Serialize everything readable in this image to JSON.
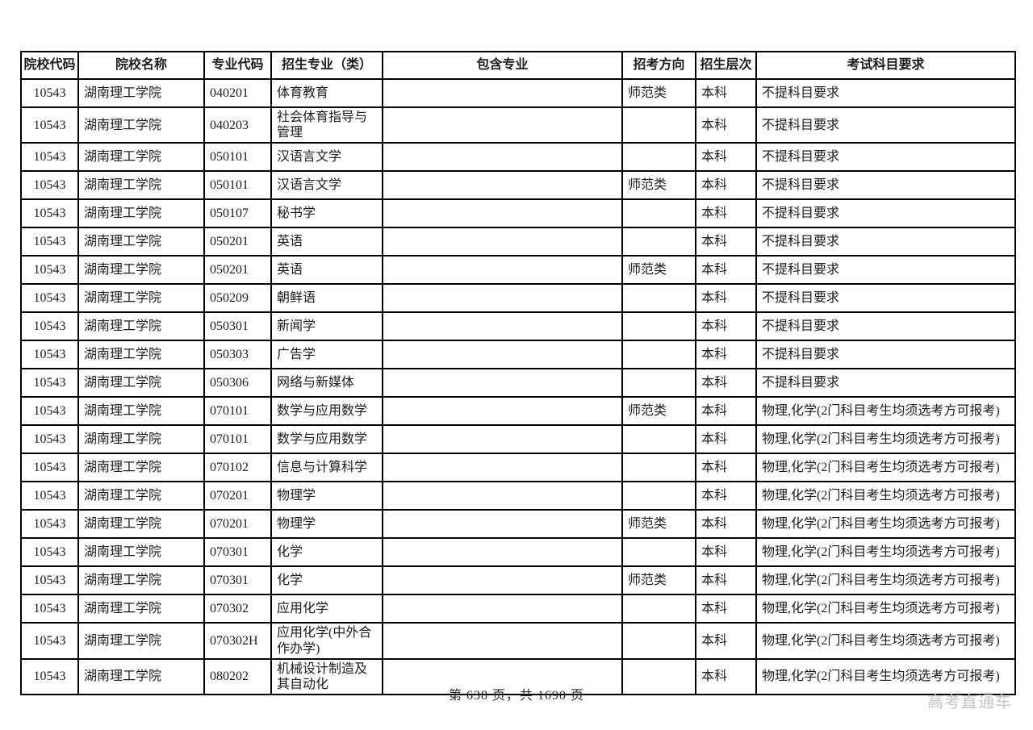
{
  "table": {
    "headers": [
      "院校代码",
      "院校名称",
      "专业代码",
      "招生专业（类）",
      "包含专业",
      "招考方向",
      "招生层次",
      "考试科目要求"
    ],
    "column_keys": [
      "college-code",
      "college-name",
      "major-code",
      "major-name",
      "included-majors",
      "direction",
      "level",
      "subject-requirements"
    ],
    "rows": [
      [
        "10543",
        "湖南理工学院",
        "040201",
        "体育教育",
        "",
        "师范类",
        "本科",
        "不提科目要求"
      ],
      [
        "10543",
        "湖南理工学院",
        "040203",
        "社会体育指导与管理",
        "",
        "",
        "本科",
        "不提科目要求"
      ],
      [
        "10543",
        "湖南理工学院",
        "050101",
        "汉语言文学",
        "",
        "",
        "本科",
        "不提科目要求"
      ],
      [
        "10543",
        "湖南理工学院",
        "050101",
        "汉语言文学",
        "",
        "师范类",
        "本科",
        "不提科目要求"
      ],
      [
        "10543",
        "湖南理工学院",
        "050107",
        "秘书学",
        "",
        "",
        "本科",
        "不提科目要求"
      ],
      [
        "10543",
        "湖南理工学院",
        "050201",
        "英语",
        "",
        "",
        "本科",
        "不提科目要求"
      ],
      [
        "10543",
        "湖南理工学院",
        "050201",
        "英语",
        "",
        "师范类",
        "本科",
        "不提科目要求"
      ],
      [
        "10543",
        "湖南理工学院",
        "050209",
        "朝鲜语",
        "",
        "",
        "本科",
        "不提科目要求"
      ],
      [
        "10543",
        "湖南理工学院",
        "050301",
        "新闻学",
        "",
        "",
        "本科",
        "不提科目要求"
      ],
      [
        "10543",
        "湖南理工学院",
        "050303",
        "广告学",
        "",
        "",
        "本科",
        "不提科目要求"
      ],
      [
        "10543",
        "湖南理工学院",
        "050306",
        "网络与新媒体",
        "",
        "",
        "本科",
        "不提科目要求"
      ],
      [
        "10543",
        "湖南理工学院",
        "070101",
        "数学与应用数学",
        "",
        "师范类",
        "本科",
        "物理,化学(2门科目考生均须选考方可报考)"
      ],
      [
        "10543",
        "湖南理工学院",
        "070101",
        "数学与应用数学",
        "",
        "",
        "本科",
        "物理,化学(2门科目考生均须选考方可报考)"
      ],
      [
        "10543",
        "湖南理工学院",
        "070102",
        "信息与计算科学",
        "",
        "",
        "本科",
        "物理,化学(2门科目考生均须选考方可报考)"
      ],
      [
        "10543",
        "湖南理工学院",
        "070201",
        "物理学",
        "",
        "",
        "本科",
        "物理,化学(2门科目考生均须选考方可报考)"
      ],
      [
        "10543",
        "湖南理工学院",
        "070201",
        "物理学",
        "",
        "师范类",
        "本科",
        "物理,化学(2门科目考生均须选考方可报考)"
      ],
      [
        "10543",
        "湖南理工学院",
        "070301",
        "化学",
        "",
        "",
        "本科",
        "物理,化学(2门科目考生均须选考方可报考)"
      ],
      [
        "10543",
        "湖南理工学院",
        "070301",
        "化学",
        "",
        "师范类",
        "本科",
        "物理,化学(2门科目考生均须选考方可报考)"
      ],
      [
        "10543",
        "湖南理工学院",
        "070302",
        "应用化学",
        "",
        "",
        "本科",
        "物理,化学(2门科目考生均须选考方可报考)"
      ],
      [
        "10543",
        "湖南理工学院",
        "070302H",
        "应用化学(中外合作办学)",
        "",
        "",
        "本科",
        "物理,化学(2门科目考生均须选考方可报考)"
      ],
      [
        "10543",
        "湖南理工学院",
        "080202",
        "机械设计制造及其自动化",
        "",
        "",
        "本科",
        "物理,化学(2门科目考生均须选考方可报考)"
      ]
    ]
  },
  "footer": {
    "page_info": "第 638 页，共 1690 页"
  },
  "watermark": {
    "text": "高考直通车"
  },
  "colors": {
    "border": "#000000",
    "text": "#1c1c1c",
    "watermark": "#c4c4c4",
    "background": "#ffffff"
  }
}
